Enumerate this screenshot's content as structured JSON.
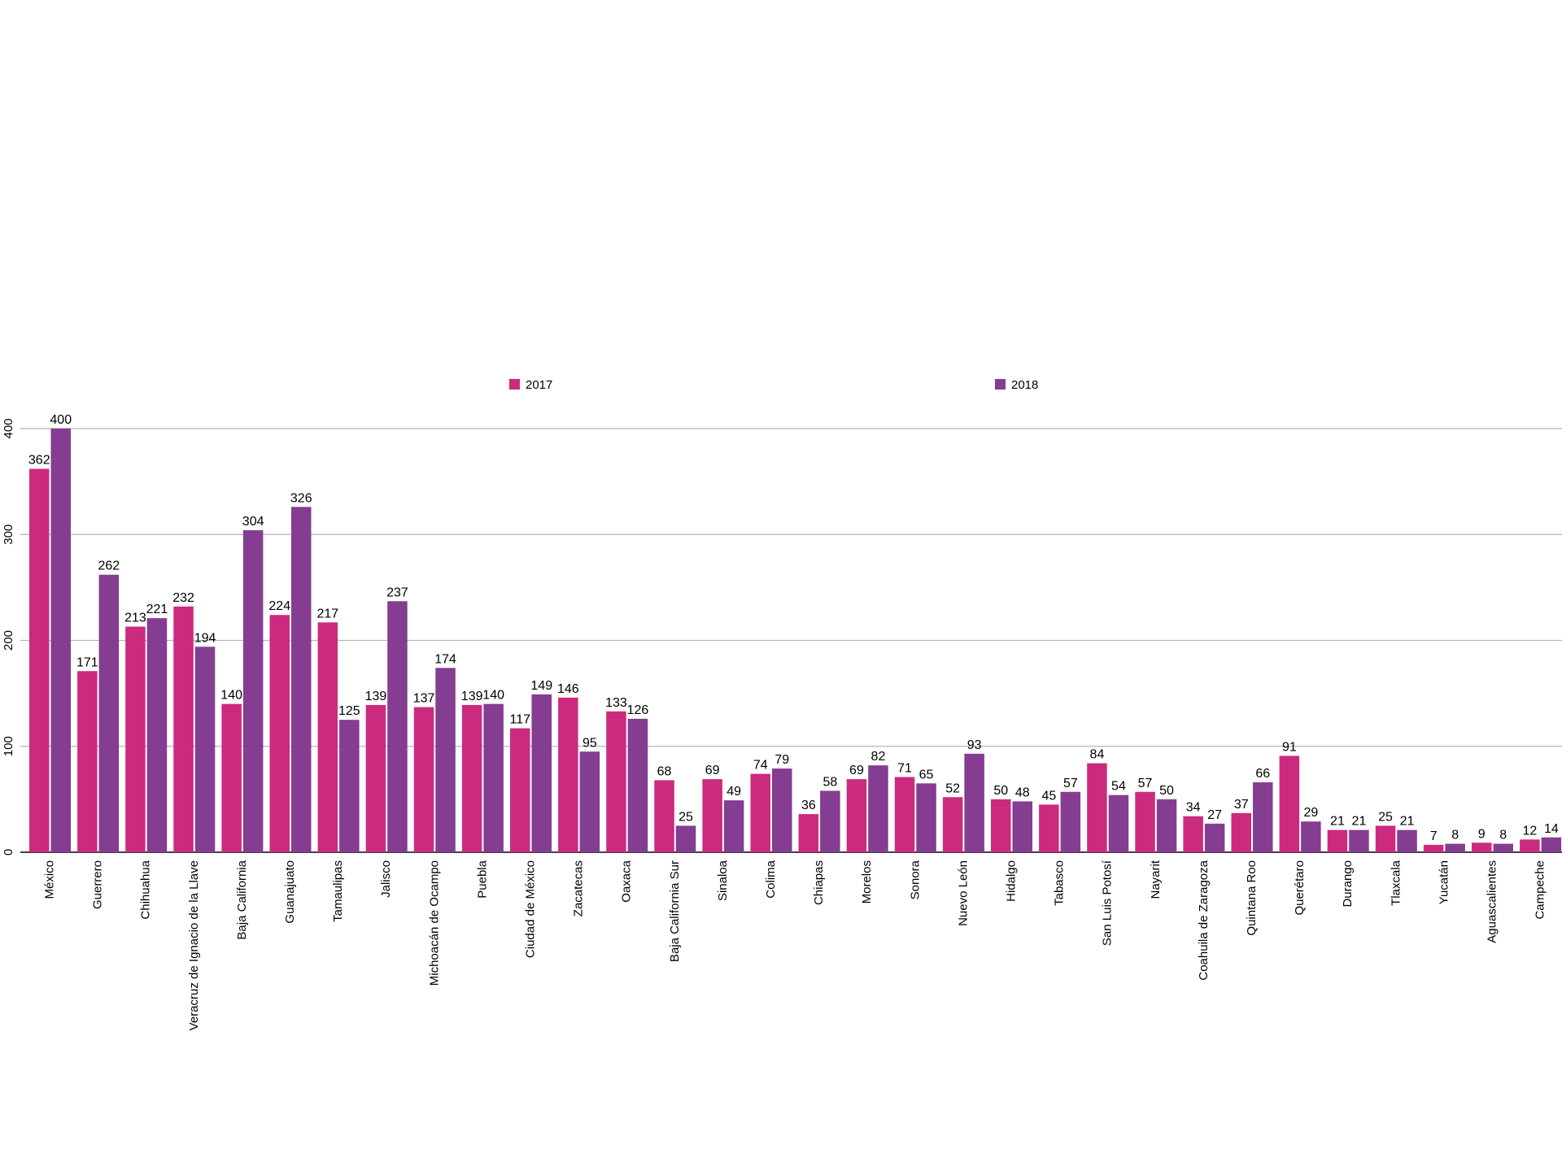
{
  "chart_data": {
    "type": "bar",
    "categories": [
      "México",
      "Guerrero",
      "Chihuahua",
      "Veracruz de Ignacio de la Llave",
      "Baja California",
      "Guanajuato",
      "Tamaulipas",
      "Jalisco",
      "Michoacán de Ocampo",
      "Puebla",
      "Ciudad de México",
      "Zacatecas",
      "Oaxaca",
      "Baja California Sur",
      "Sinaloa",
      "Colima",
      "Chiapas",
      "Morelos",
      "Sonora",
      "Nuevo León",
      "Hidalgo",
      "Tabasco",
      "San Luis Potosí",
      "Nayarit",
      "Coahuila de Zaragoza",
      "Quintana Roo",
      "Querétaro",
      "Durango",
      "Tlaxcala",
      "Yucatán",
      "Aguascalientes",
      "Campeche"
    ],
    "series": [
      {
        "name": "2017",
        "color": "#cc2a7f",
        "values": [
          362,
          171,
          213,
          232,
          140,
          224,
          217,
          139,
          137,
          139,
          117,
          146,
          133,
          68,
          69,
          74,
          36,
          69,
          71,
          52,
          50,
          45,
          84,
          57,
          34,
          37,
          91,
          21,
          25,
          7,
          9,
          12
        ]
      },
      {
        "name": "2018",
        "color": "#843d91",
        "values": [
          400,
          262,
          221,
          194,
          304,
          326,
          125,
          237,
          174,
          140,
          149,
          95,
          126,
          25,
          49,
          79,
          58,
          82,
          65,
          93,
          48,
          57,
          54,
          50,
          27,
          66,
          29,
          21,
          21,
          8,
          8,
          14
        ]
      }
    ],
    "ylim": [
      0,
      400
    ],
    "yticks": [
      0,
      100,
      200,
      300,
      400
    ],
    "grid": true,
    "legend_position": "top",
    "xlabel": "",
    "ylabel": "",
    "title": ""
  }
}
